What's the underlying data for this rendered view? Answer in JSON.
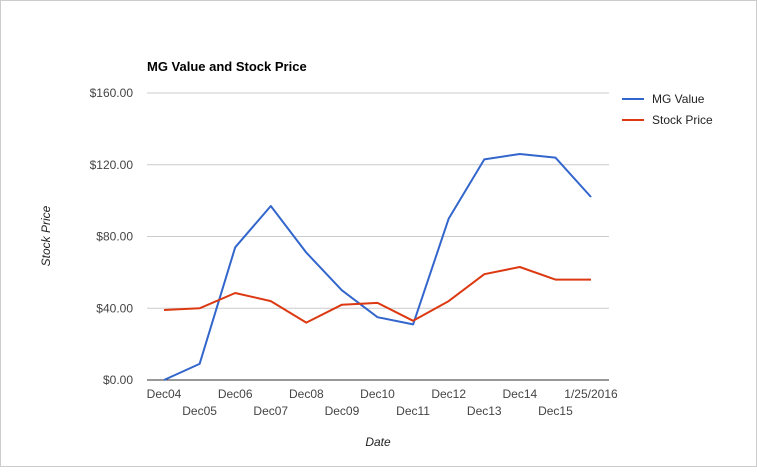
{
  "chart_data": {
    "type": "line",
    "title": "MG Value and Stock Price",
    "xlabel": "Date",
    "ylabel": "Stock Price",
    "categories": [
      "Dec04",
      "Dec05",
      "Dec06",
      "Dec07",
      "Dec08",
      "Dec09",
      "Dec10",
      "Dec11",
      "Dec12",
      "Dec13",
      "Dec14",
      "Dec15",
      "1/25/2016"
    ],
    "y_ticks": [
      "$0.00",
      "$40.00",
      "$80.00",
      "$120.00",
      "$160.00"
    ],
    "ylim": [
      0,
      160
    ],
    "grid": true,
    "legend_position": "right",
    "series": [
      {
        "name": "MG Value",
        "color": "#3366cc",
        "values": [
          0,
          9,
          74,
          97,
          71,
          50,
          35,
          31,
          90,
          123,
          126,
          124,
          102
        ]
      },
      {
        "name": "Stock Price",
        "color": "#dc3912",
        "values": [
          39,
          40,
          48.5,
          44,
          32,
          42,
          43,
          33,
          44,
          59,
          63,
          56,
          56
        ]
      }
    ]
  }
}
